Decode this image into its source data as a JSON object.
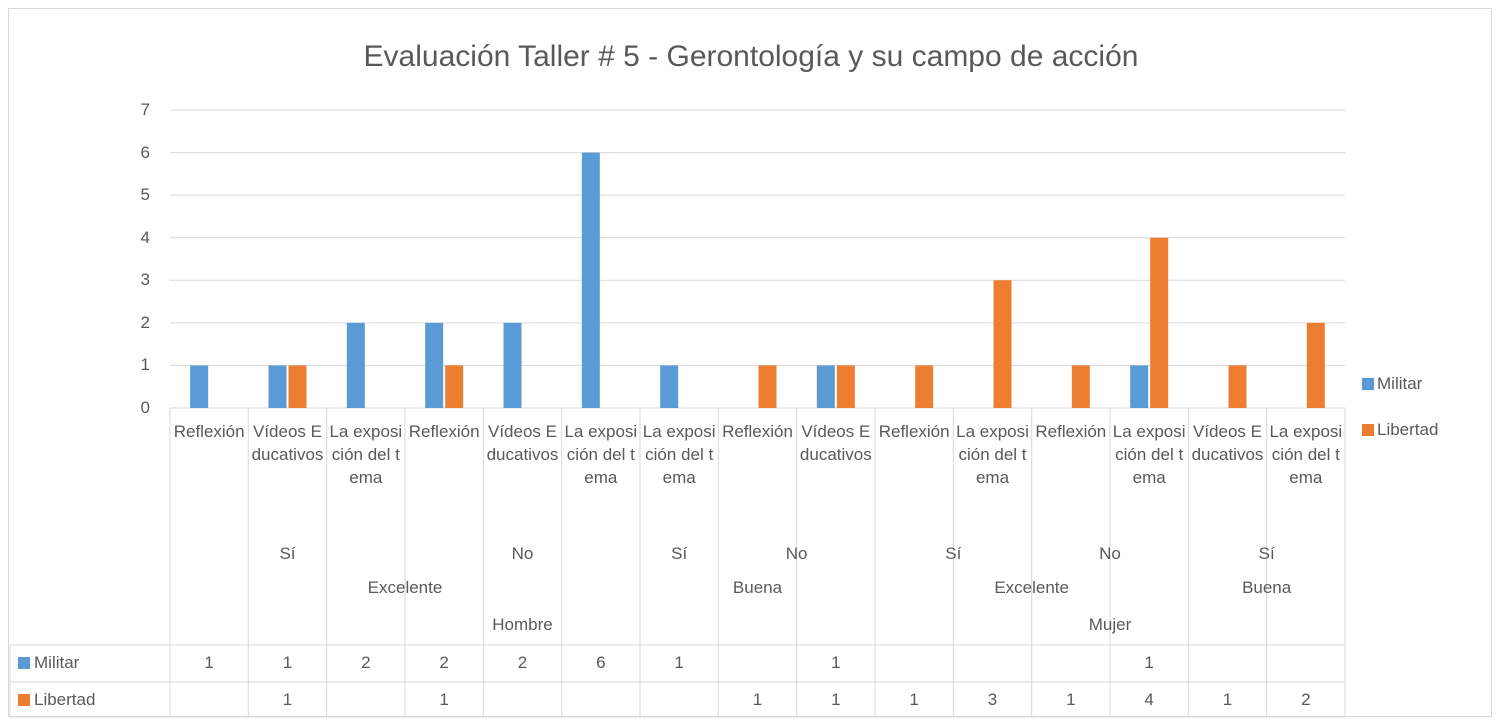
{
  "chart_data": {
    "type": "bar",
    "title": "Evaluación Taller # 5 - Gerontología y su campo de acción",
    "groups": [
      {
        "label": "Hombre",
        "children": [
          {
            "label": "Excelente",
            "children": [
              {
                "label": "Sí",
                "categories": [
                  "Reflexión",
                  "Vídeos Educativos",
                  "La exposición del tema"
                ]
              },
              {
                "label": "No",
                "categories": [
                  "Reflexión",
                  "Vídeos Educativos",
                  "La exposición del tema"
                ]
              }
            ]
          },
          {
            "label": "Buena",
            "children": [
              {
                "label": "Sí",
                "categories": [
                  "La exposición del tema"
                ]
              },
              {
                "label": "No",
                "categories": [
                  "Reflexión",
                  "Vídeos Educativos"
                ]
              }
            ]
          }
        ]
      },
      {
        "label": "Mujer",
        "children": [
          {
            "label": "Excelente",
            "children": [
              {
                "label": "Sí",
                "categories": [
                  "Reflexión",
                  "La exposición del tema"
                ]
              },
              {
                "label": "No",
                "categories": [
                  "Reflexión",
                  "La exposición del tema"
                ]
              }
            ]
          },
          {
            "label": "Buena",
            "children": [
              {
                "label": "Sí",
                "categories": [
                  "Vídeos Educativos",
                  "La exposición del tema"
                ]
              }
            ]
          }
        ]
      }
    ],
    "series": [
      {
        "name": "Militar",
        "color": "#5b9bd5",
        "values": [
          1,
          1,
          2,
          2,
          2,
          6,
          1,
          null,
          1,
          null,
          null,
          null,
          1,
          null,
          null
        ]
      },
      {
        "name": "Libertad",
        "color": "#ed7d31",
        "values": [
          null,
          1,
          null,
          1,
          null,
          null,
          null,
          1,
          1,
          1,
          3,
          1,
          4,
          1,
          2
        ]
      }
    ],
    "ylim": [
      0,
      7
    ],
    "yticks": [
      0,
      1,
      2,
      3,
      4,
      5,
      6,
      7
    ],
    "grid": true,
    "legend": "right",
    "data_table": true
  }
}
